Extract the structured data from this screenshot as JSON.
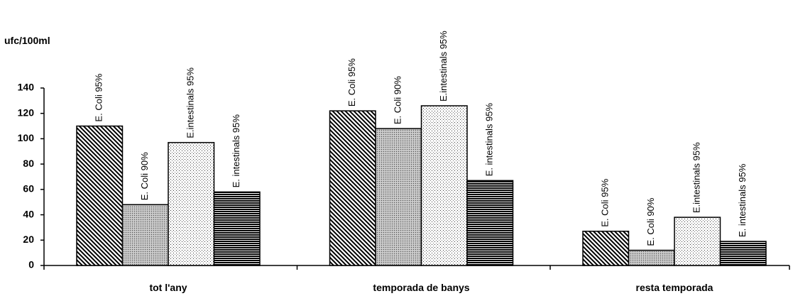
{
  "chart_data": {
    "type": "bar",
    "y_label": "ufc/100ml",
    "categories": [
      "tot l'any",
      "temporada de banys",
      "resta temporada"
    ],
    "series": [
      {
        "name": "E. Coli 95%",
        "color": "#000000",
        "pattern": "diagonal",
        "values": [
          110,
          122,
          27
        ]
      },
      {
        "name": "E. Coli 90%",
        "color": "#000000",
        "pattern": "crosshatch",
        "values": [
          48,
          108,
          12
        ]
      },
      {
        "name": "E.intestinals 95%",
        "color": "#000000",
        "pattern": "dots",
        "values": [
          97,
          126,
          38
        ]
      },
      {
        "name": "E. intestinals 95%",
        "color": "#000000",
        "pattern": "horizontal",
        "values": [
          58,
          67,
          19
        ]
      }
    ],
    "ylim": [
      0,
      140
    ],
    "yticks": [
      0,
      20,
      40,
      60,
      80,
      100,
      120,
      140
    ],
    "grid": false
  }
}
